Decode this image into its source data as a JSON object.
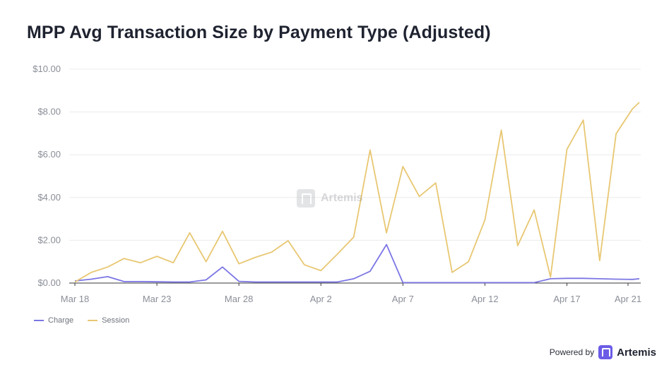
{
  "title": "MPP Avg Transaction Size by Payment Type (Adjusted)",
  "watermark": "Artemis",
  "footer": {
    "powered_by": "Powered by",
    "brand": "Artemis"
  },
  "colors": {
    "charge": "#7b76e4",
    "session": "#e8c772",
    "grid": "#ececec",
    "axis": "#3a3a3a"
  },
  "chart_data": {
    "type": "line",
    "title": "MPP Avg Transaction Size by Payment Type (Adjusted)",
    "xlabel": "",
    "ylabel": "",
    "ylim": [
      0,
      10
    ],
    "yticks": [
      "$0.00",
      "$2.00",
      "$4.00",
      "$6.00",
      "$8.00",
      "$10.00"
    ],
    "ytick_values": [
      0,
      2,
      4,
      6,
      8,
      10
    ],
    "x": [
      "Mar 18",
      "Mar 19",
      "Mar 20",
      "Mar 21",
      "Mar 22",
      "Mar 23",
      "Mar 24",
      "Mar 25",
      "Mar 26",
      "Mar 27",
      "Mar 28",
      "Mar 29",
      "Mar 30",
      "Mar 31",
      "Apr 1",
      "Apr 2",
      "Apr 3",
      "Apr 4",
      "Apr 5",
      "Apr 6",
      "Apr 7",
      "Apr 8",
      "Apr 9",
      "Apr 10",
      "Apr 11",
      "Apr 12",
      "Apr 13",
      "Apr 14",
      "Apr 15",
      "Apr 16",
      "Apr 17",
      "Apr 18",
      "Apr 19",
      "Apr 20",
      "Apr 21",
      "Apr 22"
    ],
    "xticks": [
      "Mar 18",
      "Mar 23",
      "Mar 28",
      "Apr 2",
      "Apr 7",
      "Apr 12",
      "Apr 17",
      "Apr 21"
    ],
    "series": [
      {
        "name": "Charge",
        "values": [
          0.1,
          0.18,
          0.3,
          0.07,
          0.07,
          0.06,
          0.05,
          0.05,
          0.15,
          0.75,
          0.08,
          0.05,
          0.05,
          0.05,
          0.05,
          0.05,
          0.05,
          0.2,
          0.55,
          1.8,
          0.02,
          0.02,
          0.02,
          0.02,
          0.02,
          0.02,
          0.02,
          0.02,
          0.02,
          0.2,
          0.22,
          0.22,
          0.2,
          0.18,
          0.17,
          0.2
        ]
      },
      {
        "name": "Session",
        "values": [
          0.05,
          0.5,
          0.75,
          1.15,
          0.95,
          1.25,
          0.95,
          2.35,
          1.0,
          2.42,
          0.9,
          1.2,
          1.45,
          1.98,
          0.85,
          0.58,
          1.35,
          2.15,
          6.22,
          2.35,
          5.45,
          4.05,
          4.68,
          0.5,
          1.0,
          2.95,
          7.15,
          1.75,
          3.42,
          0.28,
          6.25,
          7.62,
          1.05,
          6.98,
          8.15,
          8.45
        ]
      }
    ],
    "grid": true,
    "legend": "bottom-left"
  }
}
